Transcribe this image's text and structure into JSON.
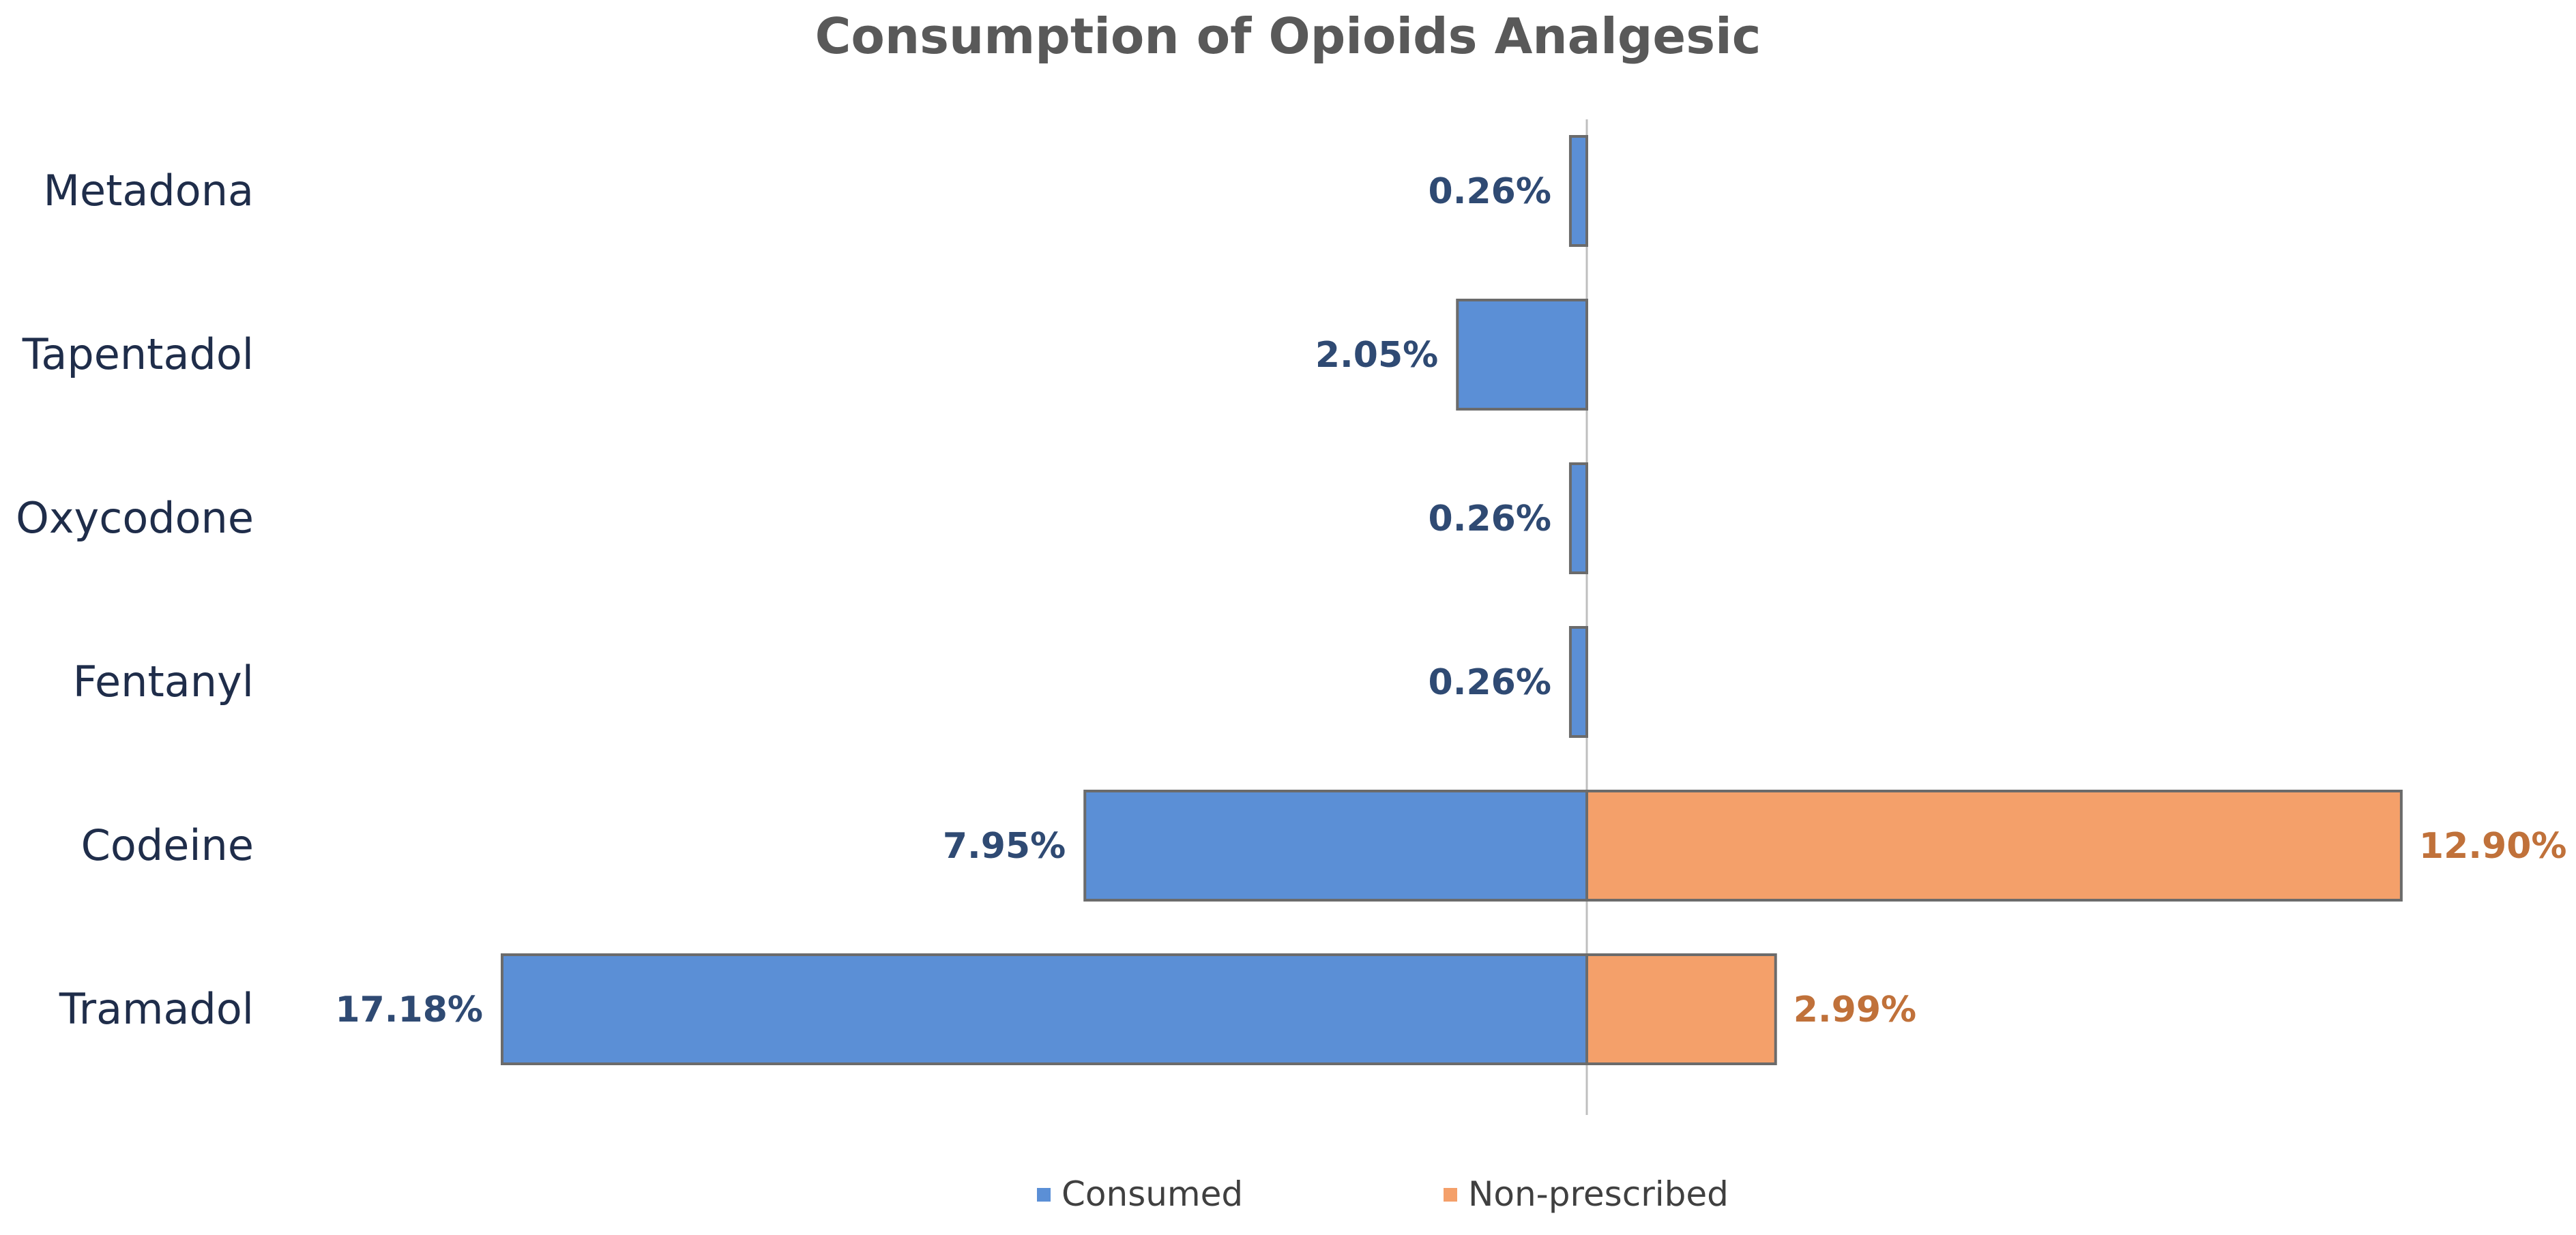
{
  "chart_data": {
    "type": "bar",
    "orientation": "horizontal",
    "title": "Consumption of Opioids Analgesic",
    "categories": [
      "Metadona",
      "Tapentadol",
      "Oxycodone",
      "Fentanyl",
      "Codeine",
      "Tramadol"
    ],
    "series": [
      {
        "name": "Consumed",
        "direction": "left",
        "color": "#5b8fd6",
        "label_color": "#2f4a73",
        "values": [
          0.26,
          2.05,
          0.26,
          0.26,
          7.95,
          17.18
        ],
        "labels": [
          "0.26%",
          "2.05%",
          "0.26%",
          "0.26%",
          "7.95%",
          "17.18%"
        ]
      },
      {
        "name": "Non-prescribed",
        "direction": "right",
        "color": "#f4a06a",
        "label_color": "#c0713a",
        "values": [
          null,
          null,
          null,
          null,
          12.9,
          2.99
        ],
        "labels": [
          "",
          "",
          "",
          "",
          "12.90%",
          "2.99%"
        ]
      }
    ],
    "legend_position": "bottom",
    "grid": false
  }
}
